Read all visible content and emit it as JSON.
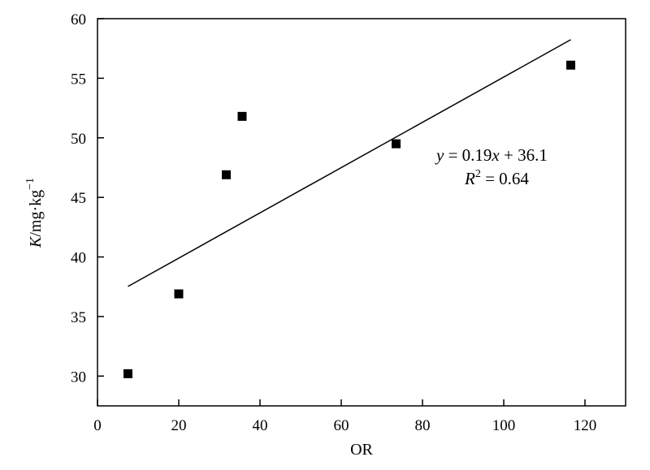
{
  "chart_data": {
    "type": "scatter",
    "xlabel": "OR",
    "ylabel": {
      "symbol": "K",
      "unit": "/mg·kg",
      "exponent": "−1"
    },
    "xlim": [
      0,
      130
    ],
    "ylim": [
      27.5,
      60
    ],
    "x_ticks": [
      "0",
      "20",
      "40",
      "60",
      "80",
      "100",
      "120"
    ],
    "y_ticks": [
      "30",
      "35",
      "40",
      "45",
      "50",
      "55",
      "60"
    ],
    "points": [
      {
        "x": 7.5,
        "y": 30.2
      },
      {
        "x": 20,
        "y": 36.9
      },
      {
        "x": 31.7,
        "y": 46.9
      },
      {
        "x": 35.6,
        "y": 51.8
      },
      {
        "x": 73.5,
        "y": 49.5
      },
      {
        "x": 116.5,
        "y": 56.1
      }
    ],
    "trendline": {
      "slope": 0.19,
      "intercept": 36.1,
      "x_range": [
        7.5,
        116.5
      ]
    },
    "annotation": {
      "y_var": "y",
      "eq_rhs_a": " = 0.19",
      "x_var": "x",
      "eq_rhs_b": " + 36.1",
      "r_var": "R",
      "r_exp": "2",
      "r_rhs": " = 0.64"
    },
    "grid": false,
    "legend": "none",
    "marker": "square",
    "color": "#000000"
  }
}
